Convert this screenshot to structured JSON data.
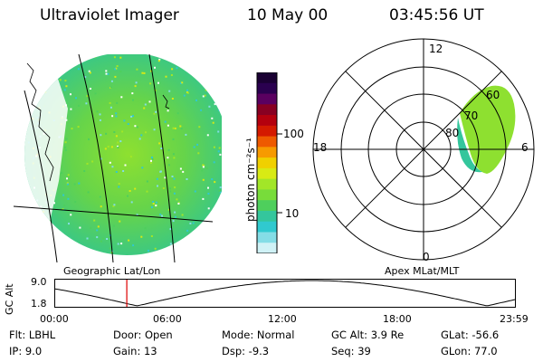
{
  "header": {
    "instrument": "Ultraviolet Imager",
    "date": "10 May 00",
    "time": "03:45:56 UT"
  },
  "image_panel": {
    "caption": "Geographic Lat/Lon"
  },
  "colorbar": {
    "unit_label": "photon cm⁻²s⁻¹",
    "tick_labels": [
      "100",
      "10"
    ],
    "colors": [
      "#1a0033",
      "#2a004f",
      "#5a0060",
      "#880022",
      "#b4000e",
      "#d41a00",
      "#ee5a00",
      "#f79a00",
      "#f0d000",
      "#d8ea14",
      "#a2e628",
      "#78dc3a",
      "#4ecf5c",
      "#34c69c",
      "#30c9cf",
      "#84dde6",
      "#d0f2f6"
    ]
  },
  "polar_plot": {
    "caption": "Apex MLat/MLT",
    "mlt_labels": [
      "12",
      "18",
      "6",
      "0"
    ],
    "mlat_labels": [
      "60",
      "70",
      "80"
    ]
  },
  "altitude_plot": {
    "axis_label": "GC Alt",
    "y_ticks": [
      "9.0",
      "1.8"
    ],
    "x_ticks": [
      "00:00",
      "06:00",
      "12:00",
      "18:00",
      "23:59"
    ],
    "current_marker_hour": 3.77
  },
  "info": {
    "flt": "Flt: LBHL",
    "door": "Door: Open",
    "mode": "Mode: Normal",
    "gc_alt": "GC Alt: 3.9 Re",
    "glat": "GLat: -56.6",
    "ip": "IP:  9.0",
    "gain": "Gain: 13",
    "dsp": "Dsp:   -9.3",
    "seq": "Seq: 39",
    "glon": "GLon:  77.0"
  }
}
